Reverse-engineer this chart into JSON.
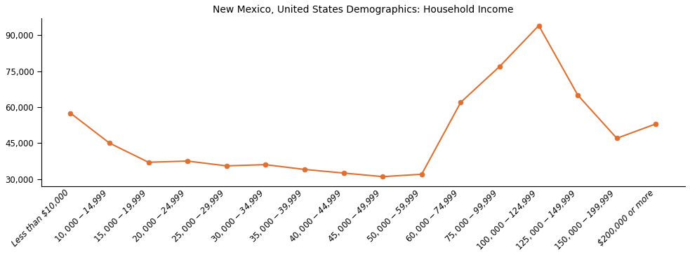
{
  "title": "New Mexico, United States Demographics: Household Income",
  "categories": [
    "Less than $10,000",
    "$10,000 - $14,999",
    "$15,000 - $19,999",
    "$20,000 - $24,999",
    "$25,000 - $29,999",
    "$30,000 - $34,999",
    "$35,000 - $39,999",
    "$40,000 - $44,999",
    "$45,000 - $49,999",
    "$50,000 - $59,999",
    "$60,000 - $74,999",
    "$75,000 - $99,999",
    "$100,000 - $124,999",
    "$125,000 - $149,999",
    "$150,000 - $199,999",
    "$200,000 or more"
  ],
  "values": [
    57500,
    45000,
    37000,
    37500,
    35500,
    36000,
    34000,
    32500,
    31000,
    32000,
    62000,
    77000,
    94000,
    65000,
    47000,
    53000
  ],
  "line_color": "#e07030",
  "marker_color": "#e07030",
  "background_color": "#ffffff",
  "ylim": [
    27000,
    97000
  ],
  "yticks": [
    30000,
    45000,
    60000,
    75000,
    90000
  ],
  "ytick_labels": [
    "30,000",
    "45,000",
    "60,000",
    "75,000",
    "90,000"
  ],
  "title_fontsize": 10,
  "tick_fontsize": 8.5
}
